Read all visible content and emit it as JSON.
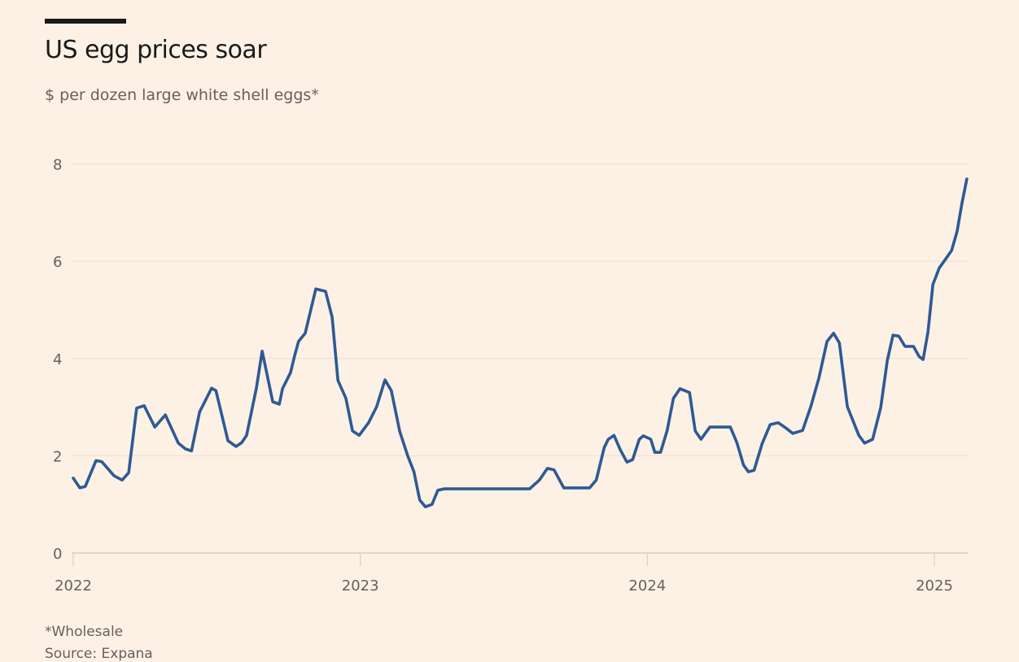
{
  "chart_data": {
    "type": "line",
    "title": "US egg prices soar",
    "subtitle": "$ per dozen large white shell eggs*",
    "xlabel": "",
    "ylabel": "$ per dozen",
    "ylim": [
      0,
      8.3
    ],
    "xlim": [
      2022.0,
      2025.12
    ],
    "grid": true,
    "yticks": [
      0,
      2,
      4,
      6,
      8
    ],
    "ytick_labels": [
      "0",
      "2",
      "4",
      "6",
      "8"
    ],
    "xticks": [
      2022,
      2023,
      2024,
      2025
    ],
    "xtick_labels": [
      "2022",
      "2023",
      "2024",
      "2025"
    ],
    "line_color": "#2e5a94",
    "legend": "none",
    "series": [
      {
        "name": "Wholesale price",
        "x": [
          2022.0,
          2022.023,
          2022.042,
          2022.079,
          2022.099,
          2022.142,
          2022.17,
          2022.193,
          2022.221,
          2022.247,
          2022.284,
          2022.321,
          2022.366,
          2022.391,
          2022.412,
          2022.44,
          2022.482,
          2022.497,
          2022.539,
          2022.567,
          2022.587,
          2022.604,
          2022.638,
          2022.658,
          2022.695,
          2022.718,
          2022.729,
          2022.757,
          2022.771,
          2022.785,
          2022.808,
          2022.845,
          2022.879,
          2022.902,
          2022.922,
          2022.95,
          2022.973,
          2022.996,
          2023.029,
          2023.057,
          2023.086,
          2023.108,
          2023.137,
          2023.165,
          2023.187,
          2023.207,
          2023.227,
          2023.25,
          2023.27,
          2023.292,
          2023.315,
          2023.337,
          2023.366,
          2023.4,
          2023.59,
          2023.624,
          2023.652,
          2023.675,
          2023.709,
          2023.799,
          2023.822,
          2023.85,
          2023.864,
          2023.884,
          2023.906,
          2023.929,
          2023.949,
          2023.972,
          2023.986,
          2024.012,
          2024.026,
          2024.046,
          2024.069,
          2024.091,
          2024.114,
          2024.147,
          2024.167,
          2024.187,
          2024.218,
          2024.289,
          2024.312,
          2024.335,
          2024.352,
          2024.372,
          2024.4,
          2024.428,
          2024.456,
          2024.485,
          2024.507,
          2024.541,
          2024.569,
          2024.598,
          2024.626,
          2024.649,
          2024.669,
          2024.697,
          2024.737,
          2024.757,
          2024.785,
          2024.813,
          2024.836,
          2024.856,
          2024.876,
          2024.898,
          2024.927,
          2024.947,
          2024.961,
          2024.978,
          2024.995,
          2025.017,
          2025.04,
          2025.06,
          2025.079,
          2025.096,
          2025.113
        ],
        "values": [
          1.54,
          1.34,
          1.37,
          1.9,
          1.88,
          1.59,
          1.5,
          1.65,
          2.98,
          3.03,
          2.59,
          2.84,
          2.26,
          2.14,
          2.1,
          2.9,
          3.39,
          3.34,
          2.31,
          2.19,
          2.27,
          2.42,
          3.39,
          4.15,
          3.11,
          3.06,
          3.38,
          3.71,
          4.05,
          4.35,
          4.52,
          5.43,
          5.38,
          4.85,
          3.55,
          3.18,
          2.51,
          2.42,
          2.68,
          3.01,
          3.56,
          3.34,
          2.51,
          2.0,
          1.67,
          1.09,
          0.95,
          1.0,
          1.29,
          1.32,
          1.32,
          1.32,
          1.32,
          1.32,
          1.32,
          1.5,
          1.74,
          1.71,
          1.34,
          1.34,
          1.5,
          2.17,
          2.34,
          2.42,
          2.12,
          1.87,
          1.92,
          2.34,
          2.41,
          2.34,
          2.07,
          2.07,
          2.52,
          3.18,
          3.38,
          3.3,
          2.51,
          2.34,
          2.59,
          2.59,
          2.27,
          1.81,
          1.67,
          1.7,
          2.25,
          2.64,
          2.68,
          2.56,
          2.46,
          2.52,
          3.0,
          3.6,
          4.35,
          4.52,
          4.32,
          3.01,
          2.42,
          2.26,
          2.34,
          2.99,
          3.96,
          4.48,
          4.46,
          4.25,
          4.25,
          4.04,
          3.98,
          4.55,
          5.52,
          5.86,
          6.05,
          6.22,
          6.61,
          7.19,
          7.69
        ]
      }
    ],
    "footnote": "*Wholesale",
    "source": "Source: Expana"
  }
}
